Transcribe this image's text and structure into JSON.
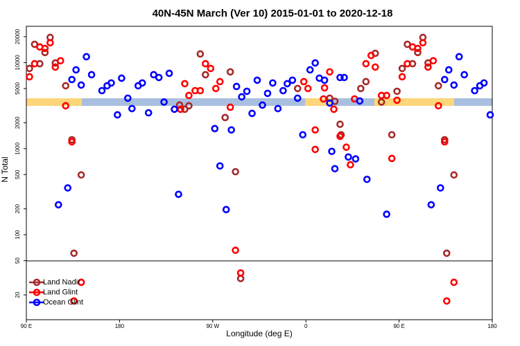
{
  "chart_data": {
    "type": "scatter",
    "title": "40N-45N March (Ver 10)   2015-01-01 to 2020-12-18",
    "x_label": "Longitude (deg E)",
    "y_label": "N Total",
    "xlim": [
      90,
      540
    ],
    "xticks": [
      {
        "value": 90,
        "label": "90 E"
      },
      180,
      {
        "value": 270,
        "label": "90 W"
      },
      {
        "value": 360,
        "label": "0"
      },
      {
        "value": 450,
        "label": "90 E"
      },
      {
        "value": 540,
        "label": "180"
      }
    ],
    "ylim": [
      10.3,
      26400
    ],
    "log_y": true,
    "yticks": [
      20,
      50,
      100,
      200,
      500,
      1000,
      2000,
      5000,
      10000,
      20000
    ],
    "legend": "bottomleft",
    "series": [
      {
        "name": "Land Nadir",
        "color": "#a52a2a",
        "x": [
          93,
          98,
          103,
          108,
          113,
          118,
          128,
          134,
          136,
          143,
          238,
          243,
          247,
          258,
          263,
          282,
          287,
          292,
          297,
          352,
          383,
          388,
          393,
          394,
          413,
          418,
          427,
          433,
          443,
          448,
          453,
          458,
          463,
          468,
          473,
          478,
          488,
          494,
          496,
          503
        ],
        "values": [
          8550,
          16300,
          9700,
          13100,
          19600,
          9900,
          5380,
          1270,
          61,
          495,
          3210,
          2870,
          3150,
          12600,
          7230,
          2300,
          7800,
          540,
          31,
          5000,
          3860,
          3550,
          1920,
          1450,
          5000,
          6010,
          12800,
          3480,
          1450,
          4640,
          8550,
          16300,
          9700,
          13100,
          19600,
          9900,
          5380,
          1270,
          61,
          495
        ]
      },
      {
        "name": "Land Glint",
        "color": "#ff0000",
        "x": [
          93,
          98,
          103,
          108,
          113,
          118,
          123,
          128,
          134,
          136,
          143,
          239,
          243,
          247,
          253,
          258,
          263,
          268,
          273,
          277,
          287,
          292,
          297,
          358,
          362,
          369,
          369,
          377,
          378,
          383,
          387,
          393,
          399,
          403,
          407,
          418,
          423,
          427,
          433,
          438,
          443,
          448,
          453,
          458,
          463,
          468,
          473,
          478,
          483,
          488,
          494,
          496,
          503
        ],
        "values": [
          6840,
          9700,
          15200,
          14600,
          17000,
          8870,
          10500,
          3150,
          1200,
          17,
          28,
          2870,
          5690,
          4150,
          4720,
          4720,
          9700,
          8550,
          5000,
          6010,
          3030,
          66,
          36,
          6010,
          5000,
          1650,
          980,
          3780,
          5090,
          7800,
          2870,
          1390,
          1040,
          650,
          3780,
          9700,
          12100,
          8870,
          4150,
          4150,
          770,
          3650,
          6840,
          9700,
          15200,
          14600,
          17000,
          8870,
          10500,
          3150,
          1200,
          17,
          28
        ]
      },
      {
        "name": "Ocean Glint",
        "color": "#0000ff",
        "x": [
          121,
          130,
          134,
          138,
          143,
          148,
          153,
          163,
          168,
          172,
          178,
          182,
          188,
          192,
          198,
          202,
          208,
          213,
          218,
          223,
          228,
          233,
          237,
          272,
          277,
          283,
          288,
          293,
          298,
          303,
          308,
          313,
          318,
          323,
          328,
          333,
          338,
          342,
          347,
          352,
          357,
          364,
          369,
          373,
          378,
          383,
          385,
          388,
          393,
          397,
          401,
          408,
          412,
          419,
          438,
          481,
          490,
          494,
          498,
          503,
          508,
          513,
          523,
          528,
          532,
          538
        ],
        "values": [
          223,
          350,
          6350,
          8230,
          5480,
          11700,
          7230,
          4720,
          5380,
          5800,
          2470,
          6590,
          3860,
          2920,
          5380,
          5800,
          2610,
          7230,
          6710,
          3480,
          7500,
          2870,
          295,
          1710,
          630,
          196,
          1650,
          5280,
          4000,
          4640,
          2570,
          6240,
          3210,
          4390,
          5800,
          2920,
          4720,
          5690,
          6240,
          3860,
          1450,
          8230,
          9900,
          6590,
          6240,
          3390,
          930,
          585,
          6710,
          6710,
          800,
          760,
          3580,
          440,
          173,
          223,
          350,
          6350,
          8230,
          5480,
          11700,
          7230,
          4720,
          5380,
          5800,
          2470
        ]
      }
    ]
  }
}
